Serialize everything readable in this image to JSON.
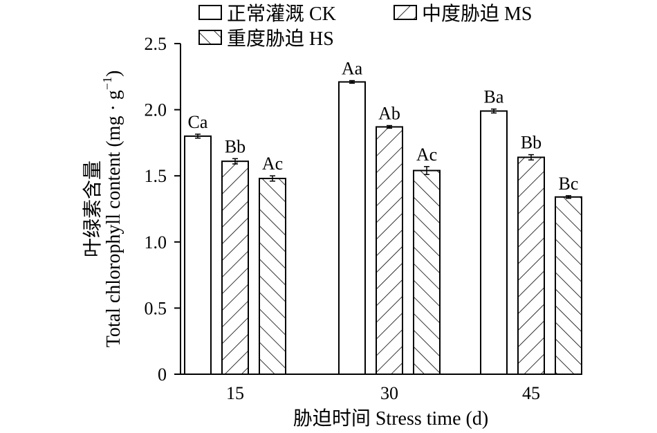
{
  "chart_data": {
    "type": "bar",
    "title": "",
    "xlabel": "胁迫时间 Stress time (d)",
    "ylabel_cn": "叶绿素含量",
    "ylabel_en": "Total chlorophyll content (mg · g",
    "ylabel_sup": "−1",
    "ylabel_close": ")",
    "categories": [
      "15",
      "30",
      "45"
    ],
    "ylim": [
      0,
      2.5
    ],
    "yticks": [
      {
        "value": 0,
        "label": "0"
      },
      {
        "value": 0.5,
        "label": "0.5"
      },
      {
        "value": 1.0,
        "label": "1.0"
      },
      {
        "value": 1.5,
        "label": "1.5"
      },
      {
        "value": 2.0,
        "label": "2.0"
      },
      {
        "value": 2.5,
        "label": "2.5"
      }
    ],
    "grid": false,
    "legend_position": "top",
    "series": [
      {
        "name": "正常灌溉 CK",
        "pattern": "none",
        "values": [
          1.8,
          2.21,
          1.99
        ],
        "errors": [
          0.015,
          0.01,
          0.015
        ],
        "labels": [
          "Ca",
          "Aa",
          "Ba"
        ]
      },
      {
        "name": "中度胁迫 MS",
        "pattern": "forward",
        "values": [
          1.61,
          1.87,
          1.64
        ],
        "errors": [
          0.02,
          0.01,
          0.02
        ],
        "labels": [
          "Bb",
          "Ab",
          "Bb"
        ]
      },
      {
        "name": "重度胁迫 HS",
        "pattern": "backward",
        "values": [
          1.48,
          1.54,
          1.34
        ],
        "errors": [
          0.02,
          0.03,
          0.01
        ],
        "labels": [
          "Ac",
          "Ac",
          "Bc"
        ]
      }
    ]
  }
}
